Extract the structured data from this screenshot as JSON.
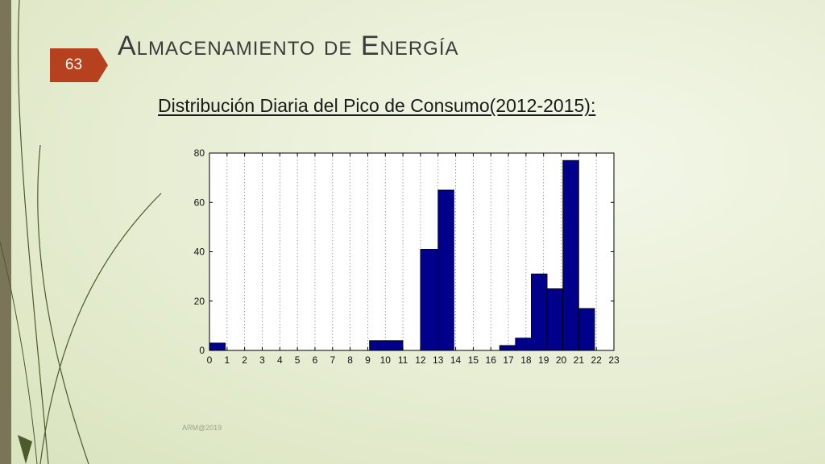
{
  "slide": {
    "number": "63",
    "title": "Almacenamiento de Energía",
    "subtitle": "Distribución Diaria del Pico de Consumo(2012-2015):",
    "footer": "ARM@2019"
  },
  "colors": {
    "bar": "#00008b",
    "accent_tab": "#b6411f",
    "left_bar": "#7a7458",
    "decor_stroke": "#4c5a2c"
  },
  "chart_data": {
    "type": "bar",
    "title": "",
    "xlabel": "",
    "ylabel": "",
    "xlim": [
      0,
      23
    ],
    "ylim": [
      0,
      80
    ],
    "x_ticks": [
      "0",
      "1",
      "2",
      "3",
      "4",
      "5",
      "6",
      "7",
      "8",
      "9",
      "10",
      "11",
      "12",
      "13",
      "14",
      "15",
      "16",
      "17",
      "18",
      "19",
      "20",
      "21",
      "22",
      "23"
    ],
    "y_ticks": [
      "0",
      "20",
      "40",
      "60",
      "80"
    ],
    "grid": "vertical dotted",
    "bars": [
      {
        "start": 0,
        "end": 0.9,
        "value": 3
      },
      {
        "start": 9.1,
        "end": 11,
        "value": 4
      },
      {
        "start": 12,
        "end": 13,
        "value": 41
      },
      {
        "start": 13,
        "end": 13.9,
        "value": 65
      },
      {
        "start": 16.5,
        "end": 17.4,
        "value": 2
      },
      {
        "start": 17.4,
        "end": 18.3,
        "value": 5
      },
      {
        "start": 18.3,
        "end": 19.2,
        "value": 31
      },
      {
        "start": 19.2,
        "end": 20.1,
        "value": 25
      },
      {
        "start": 20.1,
        "end": 21,
        "value": 77
      },
      {
        "start": 21,
        "end": 21.9,
        "value": 17
      }
    ]
  }
}
